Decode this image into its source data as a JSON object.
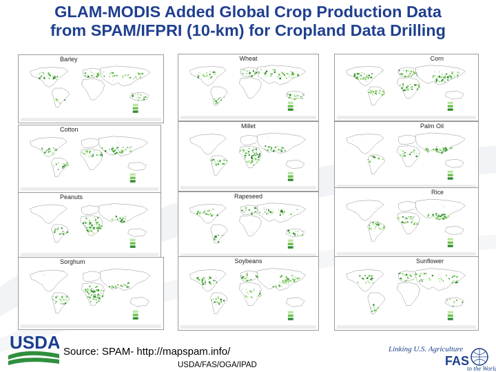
{
  "slide": {
    "title_line1": "GLAM-MODIS Added Global Crop Production Data",
    "title_line2": "from SPAM/IFPRI (10-km) for Cropland Data Drilling",
    "source": "Source:  SPAM- http://mapspam.info/",
    "dept": "USDA/FAS/OGA/IPAD",
    "usda_logo_text": "USDA",
    "fas_logo_text_1": "Linking U.S. Agriculture",
    "fas_logo_text_2": "FAS",
    "fas_logo_text_3": "to the World"
  },
  "maps": [
    {
      "crop": "Barley",
      "align": "left",
      "density": 0.55,
      "focus": "temperate"
    },
    {
      "crop": "Wheat",
      "align": "center",
      "density": 0.7,
      "focus": "temperate"
    },
    {
      "crop": "Corn",
      "align": "right",
      "density": 0.8,
      "focus": "broad"
    },
    {
      "crop": "Cotton",
      "align": "left",
      "density": 0.5,
      "focus": "subtropical"
    },
    {
      "crop": "Millet",
      "align": "center",
      "density": 0.6,
      "focus": "tropical-dry"
    },
    {
      "crop": "Palm Oil",
      "align": "right",
      "density": 0.45,
      "focus": "tropical"
    },
    {
      "crop": "Peanuts",
      "align": "center",
      "density": 0.55,
      "focus": "tropical-dry"
    },
    {
      "crop": "Rapeseed",
      "align": "center",
      "density": 0.5,
      "focus": "temperate"
    },
    {
      "crop": "Rice",
      "align": "right",
      "density": 0.7,
      "focus": "tropical"
    },
    {
      "crop": "Sorghum",
      "align": "left",
      "density": 0.6,
      "focus": "tropical-dry"
    },
    {
      "crop": "Soybeans",
      "align": "center",
      "density": 0.6,
      "focus": "broad"
    },
    {
      "crop": "Sunflower",
      "align": "right",
      "density": 0.5,
      "focus": "temperate"
    }
  ],
  "colors": {
    "title": "#1f3f8f",
    "land": "#ffffff",
    "border": "#8a8a8a",
    "crop_light": "#b9e6a3",
    "crop_mid": "#6cc24a",
    "crop_dark": "#2e8b2e",
    "usda_blue": "#1a3e8c",
    "usda_green": "#2f8f3e"
  }
}
